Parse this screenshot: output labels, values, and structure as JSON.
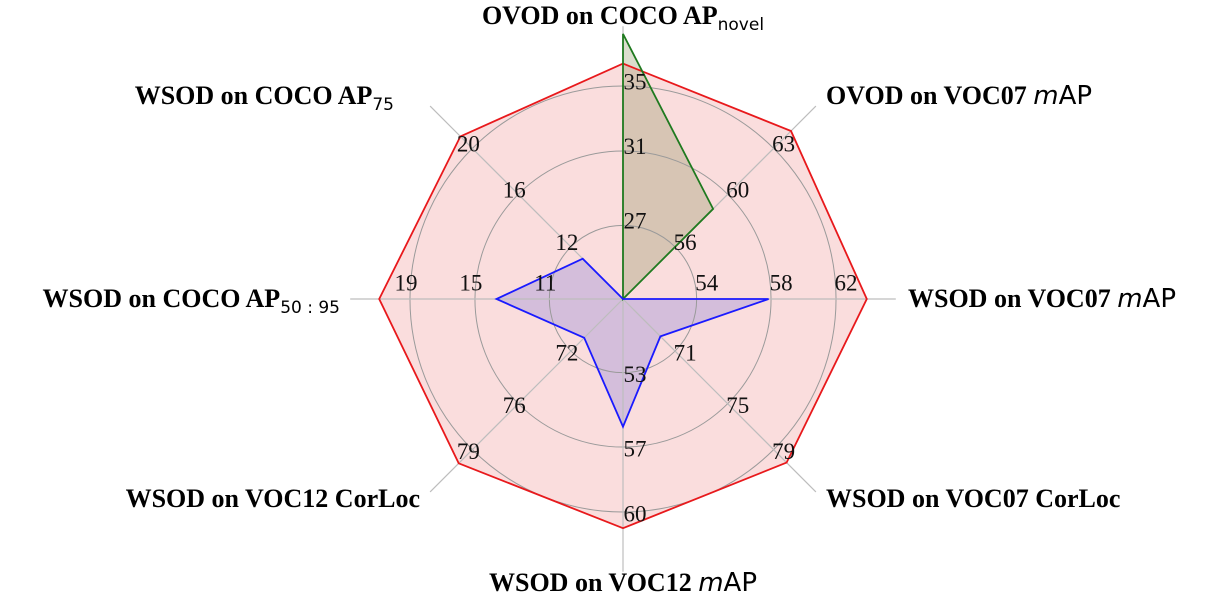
{
  "chart_data": {
    "type": "radar",
    "axes": [
      {
        "title": "OVOD on COCO AP",
        "sub": "novel",
        "ticks": [
          "27",
          "31",
          "35"
        ]
      },
      {
        "title": "OVOD on VOC07 ",
        "ital": "m",
        "tail": "AP",
        "ticks": [
          "56",
          "60",
          "63"
        ]
      },
      {
        "title": "WSOD on VOC07 ",
        "ital": "m",
        "tail": "AP",
        "ticks": [
          "54",
          "58",
          "62"
        ]
      },
      {
        "title": "WSOD on VOC07 CorLoc",
        "ticks": [
          "71",
          "75",
          "79"
        ]
      },
      {
        "title": "WSOD on VOC12 ",
        "ital": "m",
        "tail": "AP",
        "ticks": [
          "53",
          "57",
          "60"
        ]
      },
      {
        "title": "WSOD on VOC12 CorLoc",
        "ticks": [
          "72",
          "76",
          "79"
        ]
      },
      {
        "title": "WSOD on COCO AP",
        "sub": "50 : 95",
        "ticks": [
          "11",
          "15",
          "19"
        ]
      },
      {
        "title": "WSOD on COCO AP",
        "sub": "75",
        "ticks": [
          "12",
          "16",
          "20"
        ]
      }
    ],
    "scale": {
      "ticks_at_fraction": [
        0.297,
        0.597,
        0.859
      ]
    },
    "series": [
      {
        "color": "#e8191c",
        "fill": "#f7c6c6",
        "fill_opacity": 0.6,
        "values": [
          35.6,
          63.9,
          62.6,
          80.0,
          60.3,
          79.9,
          19.7,
          20.6
        ]
      },
      {
        "color": "#1f7a1f",
        "fill": "#7f8a4a",
        "fill_opacity": 0.28,
        "values": [
          36.5,
          61.2,
          0,
          0,
          0,
          0,
          0,
          0
        ]
      },
      {
        "color": "#1a1aff",
        "fill": "#8c84d6",
        "fill_opacity": 0.35,
        "values": [
          0,
          0,
          58.0,
          72.1,
          57.5,
          72.5,
          15.3,
          12.6
        ]
      }
    ],
    "series_fractions": [
      [
        0.949,
        0.958,
        0.983,
        0.933,
        0.924,
        0.937,
        0.983,
        0.927
      ],
      [
        1.069,
        0.514,
        0,
        0,
        0,
        0,
        0,
        0
      ],
      [
        0,
        0,
        0.587,
        0.213,
        0.515,
        0.221,
        0.51,
        0.23
      ]
    ]
  }
}
